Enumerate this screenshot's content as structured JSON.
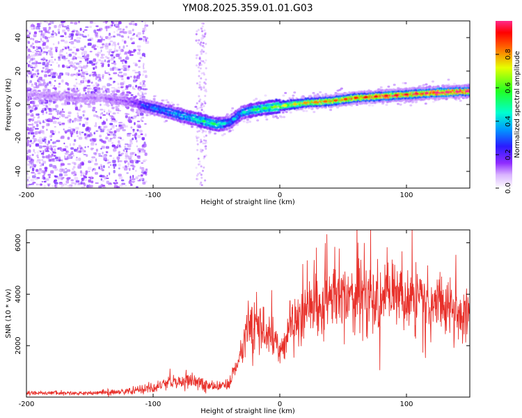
{
  "chart_data": [
    {
      "type": "heatmap",
      "title": "YM08.2025.359.01.01.G03",
      "xlabel": "Height of straight line (km)",
      "ylabel": "Frequency (Hz)",
      "xlim": [
        -200,
        150
      ],
      "ylim": [
        -50,
        50
      ],
      "xticks": [
        -200,
        -100,
        0,
        100
      ],
      "yticks": [
        -40,
        -20,
        0,
        20,
        40
      ],
      "colorbar": {
        "label": "Normalized spectral amplitude",
        "range": [
          0,
          1
        ],
        "ticks": [
          "0.0",
          "0.2",
          "0.4",
          "0.6",
          "0.8"
        ]
      },
      "ridge": {
        "x": [
          -200,
          -180,
          -160,
          -140,
          -120,
          -100,
          -80,
          -60,
          -50,
          -40,
          -30,
          -20,
          -10,
          0,
          20,
          40,
          60,
          80,
          100,
          120,
          150
        ],
        "frequency": [
          6,
          5,
          4,
          4,
          2,
          -2,
          -6,
          -10,
          -12,
          -11,
          -5,
          -3,
          -2,
          -1,
          1,
          2,
          4,
          5,
          6,
          7,
          8
        ],
        "amplitude": [
          0.12,
          0.15,
          0.15,
          0.15,
          0.2,
          0.3,
          0.35,
          0.45,
          0.45,
          0.3,
          0.35,
          0.45,
          0.5,
          0.6,
          0.7,
          0.75,
          0.8,
          0.85,
          0.85,
          0.9,
          0.9
        ]
      }
    },
    {
      "type": "line",
      "xlabel": "Height of straight line (km)",
      "ylabel": "SNR (10 * v/v)",
      "xlim": [
        -200,
        150
      ],
      "ylim": [
        0,
        6500
      ],
      "xticks": [
        -200,
        -100,
        0,
        100
      ],
      "yticks": [
        2000,
        4000,
        6000
      ],
      "series": [
        {
          "name": "SNR",
          "color": "#e8302a",
          "x": [
            -200,
            -180,
            -160,
            -140,
            -120,
            -100,
            -90,
            -80,
            -70,
            -60,
            -50,
            -40,
            -35,
            -30,
            -25,
            -20,
            -15,
            -10,
            -5,
            0,
            5,
            10,
            20,
            30,
            40,
            50,
            60,
            70,
            80,
            90,
            100,
            110,
            120,
            130,
            140,
            150
          ],
          "values": [
            150,
            160,
            150,
            170,
            220,
            400,
            500,
            550,
            650,
            500,
            400,
            500,
            1100,
            1800,
            2800,
            2800,
            2700,
            2500,
            2300,
            1800,
            2400,
            2900,
            3200,
            3600,
            3800,
            4000,
            4000,
            3900,
            3800,
            3900,
            4100,
            3700,
            3500,
            3500,
            3300,
            3400
          ]
        }
      ]
    }
  ]
}
